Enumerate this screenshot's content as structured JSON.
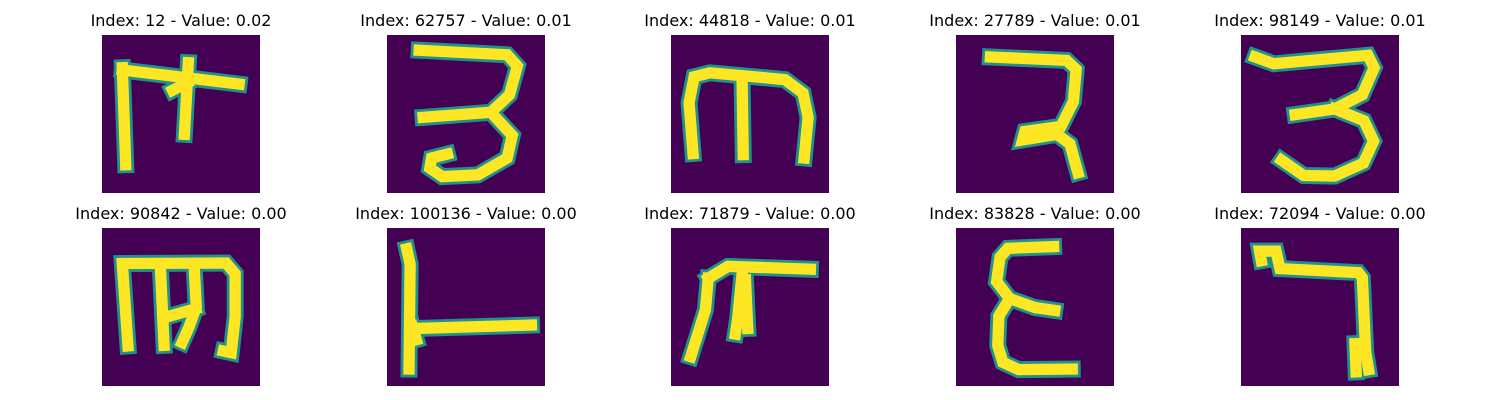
{
  "colors": {
    "background": "#440154",
    "stroke_core": "#fde725",
    "stroke_edge": "#21918c"
  },
  "panels": [
    {
      "title": "Index: 12 - Value: 0.02",
      "index": 12,
      "value": 0.02
    },
    {
      "title": "Index: 62757 - Value: 0.01",
      "index": 62757,
      "value": 0.01
    },
    {
      "title": "Index: 44818 - Value: 0.01",
      "index": 44818,
      "value": 0.01
    },
    {
      "title": "Index: 27789 - Value: 0.01",
      "index": 27789,
      "value": 0.01
    },
    {
      "title": "Index: 98149 - Value: 0.01",
      "index": 98149,
      "value": 0.01
    },
    {
      "title": "Index: 90842 - Value: 0.00",
      "index": 90842,
      "value": 0.0
    },
    {
      "title": "Index: 100136 - Value: 0.00",
      "index": 100136,
      "value": 0.0
    },
    {
      "title": "Index: 71879 - Value: 0.00",
      "index": 71879,
      "value": 0.0
    },
    {
      "title": "Index: 83828 - Value: 0.00",
      "index": 83828,
      "value": 0.0
    },
    {
      "title": "Index: 72094 - Value: 0.00",
      "index": 72094,
      "value": 0.0
    }
  ]
}
